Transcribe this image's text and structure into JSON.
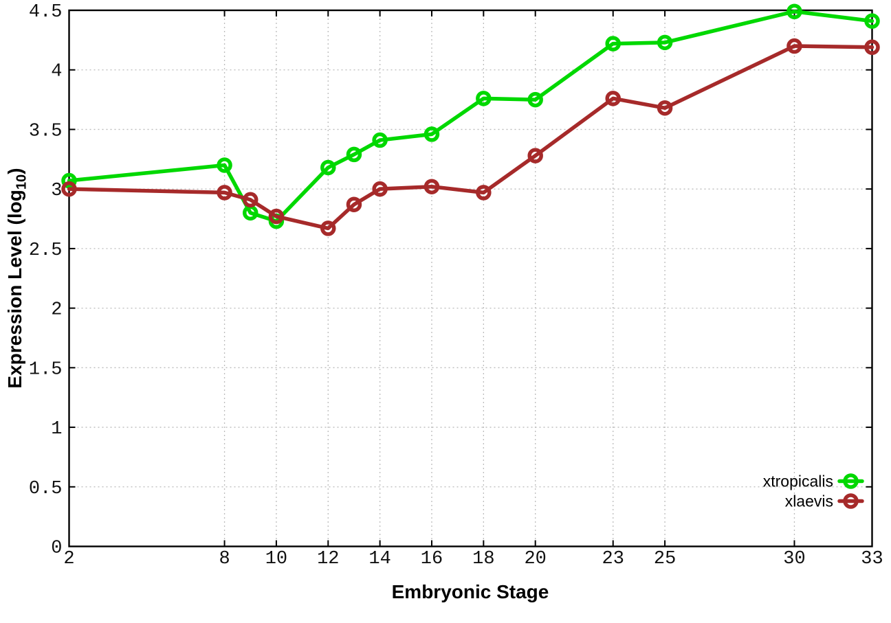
{
  "figure": {
    "background": "#ffffff",
    "xlabel": "Embryonic Stage",
    "ylabel_prefix": "Expression Level (log",
    "ylabel_sub": "10",
    "ylabel_suffix": ")"
  },
  "chart_data": {
    "type": "line",
    "title": "",
    "xlabel": "Embryonic Stage",
    "ylabel": "Expression Level (log10)",
    "x": [
      2,
      8,
      9,
      10,
      12,
      13,
      14,
      16,
      18,
      20,
      23,
      25,
      30,
      33
    ],
    "x_tick_labels": [
      2,
      8,
      10,
      12,
      14,
      16,
      18,
      20,
      23,
      25,
      30,
      33
    ],
    "y_tick_labels": [
      0,
      0.5,
      1,
      1.5,
      2,
      2.5,
      3,
      3.5,
      4,
      4.5
    ],
    "xlim": [
      2,
      33
    ],
    "ylim": [
      0,
      4.5
    ],
    "grid": true,
    "grid_style": "dotted",
    "legend_position": "bottom-right",
    "marker": "open-circle",
    "series": [
      {
        "name": "xtropicalis",
        "color": "#00d800",
        "values": [
          3.07,
          3.2,
          2.8,
          2.73,
          3.18,
          3.29,
          3.41,
          3.46,
          3.76,
          3.75,
          4.22,
          4.23,
          4.49,
          4.41
        ]
      },
      {
        "name": "xlaevis",
        "color": "#a62a2a",
        "values": [
          3.0,
          2.97,
          2.91,
          2.77,
          2.67,
          2.87,
          3.0,
          3.02,
          2.97,
          3.28,
          3.76,
          3.68,
          4.2,
          4.19
        ]
      }
    ],
    "style": {
      "grid_color": "#bbbbbb",
      "axis_color": "#000000",
      "line_width": 5.5,
      "marker_radius": 8.5,
      "tick_length": 9
    }
  }
}
